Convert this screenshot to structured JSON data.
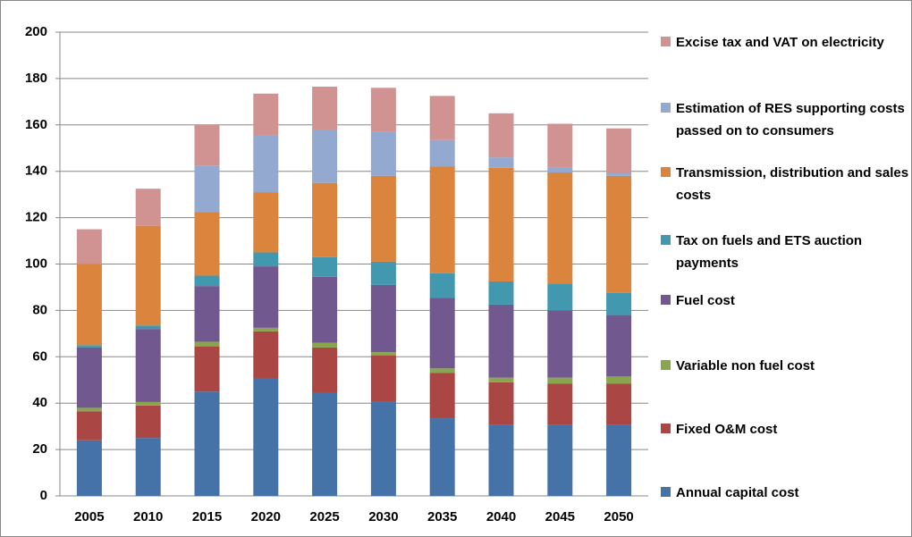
{
  "chart_data": {
    "type": "stacked_bar",
    "categories": [
      "2005",
      "2010",
      "2015",
      "2020",
      "2025",
      "2030",
      "2035",
      "2040",
      "2045",
      "2050"
    ],
    "series": [
      {
        "name": "Annual capital cost",
        "color": "#4572a7",
        "values": [
          24,
          25,
          45,
          50.5,
          44.5,
          40.5,
          33.5,
          30.5,
          30.5,
          30.5
        ]
      },
      {
        "name": "Fixed O&M cost",
        "color": "#aa4643",
        "values": [
          12.5,
          14,
          19.5,
          20.5,
          19.5,
          20,
          19.5,
          18.5,
          18,
          18
        ]
      },
      {
        "name": "Variable non fuel cost",
        "color": "#89a54e",
        "values": [
          1.5,
          1.5,
          2,
          1.5,
          2,
          1.5,
          2,
          2,
          2.5,
          3
        ]
      },
      {
        "name": "Fuel cost",
        "color": "#71588f",
        "values": [
          26,
          31.5,
          24,
          26.5,
          28.5,
          29,
          30.5,
          31.5,
          29,
          26.5
        ]
      },
      {
        "name": "Tax on fuels and ETS auction payments",
        "color": "#4198af",
        "values": [
          1,
          1.5,
          4.5,
          6,
          8.5,
          10,
          10.5,
          10,
          11.5,
          9.5
        ]
      },
      {
        "name": "Transmission, distribution and sales costs",
        "color": "#db843d",
        "values": [
          35,
          43,
          27.5,
          26,
          32,
          37,
          46,
          49,
          48,
          50.5
        ]
      },
      {
        "name": "Estimation of RES supporting costs passed on to consumers",
        "color": "#93a9cf",
        "values": [
          0,
          0,
          20,
          24.5,
          23,
          19,
          11.5,
          4.5,
          2,
          1.5
        ]
      },
      {
        "name": "Excise tax and VAT on electricity",
        "color": "#d19392",
        "values": [
          15,
          16,
          17.5,
          18,
          18.5,
          19,
          19,
          19,
          19,
          19
        ]
      }
    ],
    "ylim": [
      0,
      200
    ],
    "yticks": [
      0,
      20,
      40,
      60,
      80,
      100,
      120,
      140,
      160,
      180,
      200
    ],
    "grid": true
  }
}
